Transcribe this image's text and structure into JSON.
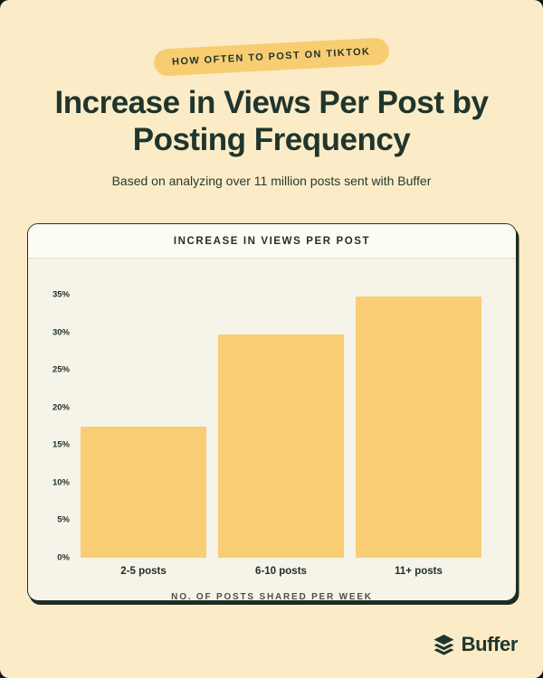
{
  "page": {
    "badge": "HOW OFTEN TO POST ON TIKTOK",
    "title": "Increase in Views Per Post by Posting Frequency",
    "subtitle": "Based on analyzing over 11 million posts sent with Buffer",
    "footer_brand": "Buffer"
  },
  "card": {
    "header": "INCREASE IN VIEWS PER POST"
  },
  "chart_data": {
    "type": "bar",
    "title": "INCREASE IN VIEWS PER POST",
    "categories": [
      "2-5 posts",
      "6-10 posts",
      "11+ posts"
    ],
    "values": [
      17.5,
      29.7,
      34.8
    ],
    "xlabel": "NO. OF POSTS SHARED PER WEEK",
    "ylabel": "",
    "ylim": [
      0,
      35
    ],
    "ytick_step": 5,
    "yticks": [
      "0%",
      "5%",
      "10%",
      "15%",
      "20%",
      "25%",
      "30%",
      "35%"
    ],
    "grid": false,
    "legend": false,
    "bar_color": "#f9cd74"
  },
  "colors": {
    "page_background": "#fbecc7",
    "accent_yellow": "#f8cd72",
    "dark_green_text": "#20352d",
    "card_header_background": "#fdfcf4",
    "card_body_background": "#f6f4e9",
    "card_border": "#233229",
    "caption_gray": "#4c4f47"
  }
}
